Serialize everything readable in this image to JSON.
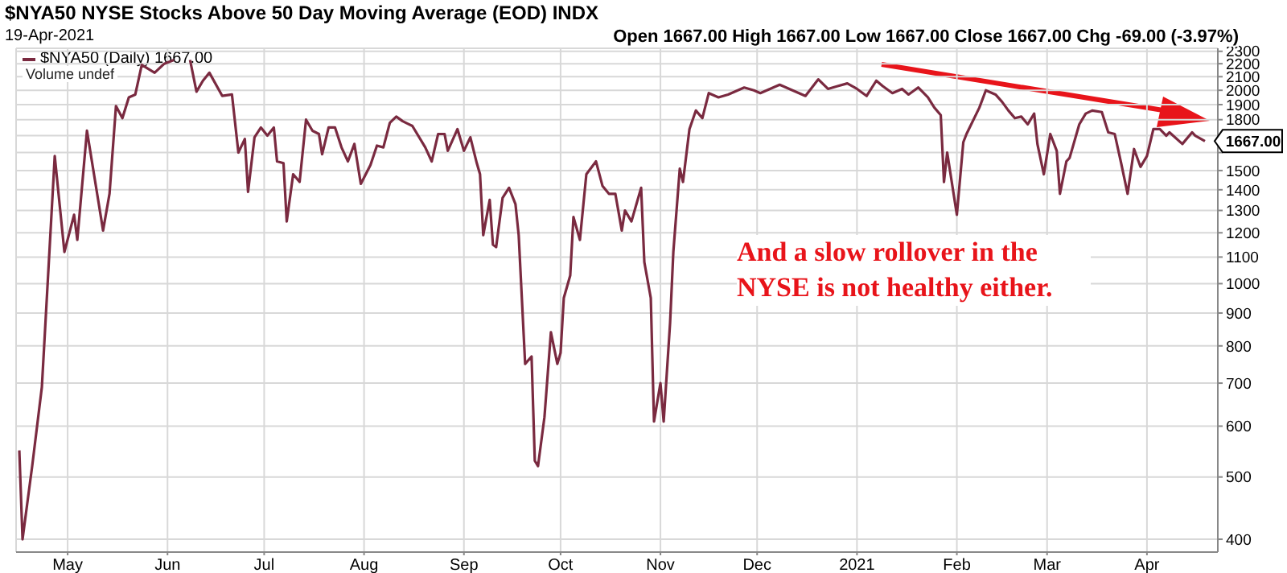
{
  "chart_data": {
    "type": "line",
    "title": "$NYA50 NYSE Stocks Above 50 Day Moving Average (EOD) INDX",
    "subtitle": "19-Apr-2021",
    "annotations": [
      "Open 1667.00 High 1667.00 Low 1667.00 Close 1667.00 Chg -69.00 (-3.97%)",
      "Volume undef",
      "And a slow rollover in the NYSE is not healthy either.",
      {
        "text": "1667.00",
        "x": "2021-04-19",
        "y": 1667
      }
    ],
    "x": [
      "2020-04-16",
      "2020-04-17",
      "2020-04-20",
      "2020-04-23",
      "2020-04-27",
      "2020-04-30",
      "2020-05-03",
      "2020-05-04",
      "2020-05-07",
      "2020-05-12",
      "2020-05-14",
      "2020-05-16",
      "2020-05-18",
      "2020-05-20",
      "2020-05-22",
      "2020-05-24",
      "2020-05-28",
      "2020-05-31",
      "2020-06-03",
      "2020-06-05",
      "2020-06-08",
      "2020-06-10",
      "2020-06-12",
      "2020-06-14",
      "2020-06-18",
      "2020-06-21",
      "2020-06-23",
      "2020-06-25",
      "2020-06-26",
      "2020-06-28",
      "2020-06-30",
      "2020-07-02",
      "2020-07-04",
      "2020-07-05",
      "2020-07-07",
      "2020-07-08",
      "2020-07-10",
      "2020-07-12",
      "2020-07-14",
      "2020-07-16",
      "2020-07-18",
      "2020-07-19",
      "2020-07-21",
      "2020-07-23",
      "2020-07-25",
      "2020-07-27",
      "2020-07-29",
      "2020-07-31",
      "2020-08-03",
      "2020-08-05",
      "2020-08-07",
      "2020-08-09",
      "2020-08-11",
      "2020-08-13",
      "2020-08-16",
      "2020-08-20",
      "2020-08-22",
      "2020-08-24",
      "2020-08-26",
      "2020-08-27",
      "2020-08-30",
      "2020-09-01",
      "2020-09-03",
      "2020-09-05",
      "2020-09-06",
      "2020-09-07",
      "2020-09-09",
      "2020-09-10",
      "2020-09-11",
      "2020-09-13",
      "2020-09-15",
      "2020-09-17",
      "2020-09-18",
      "2020-09-20",
      "2020-09-22",
      "2020-09-23",
      "2020-09-24",
      "2020-09-26",
      "2020-09-28",
      "2020-09-30",
      "2020-10-01",
      "2020-10-02",
      "2020-10-04",
      "2020-10-05",
      "2020-10-07",
      "2020-10-09",
      "2020-10-12",
      "2020-10-14",
      "2020-10-16",
      "2020-10-18",
      "2020-10-20",
      "2020-10-21",
      "2020-10-23",
      "2020-10-26",
      "2020-10-27",
      "2020-10-29",
      "2020-10-30",
      "2020-11-01",
      "2020-11-02",
      "2020-11-04",
      "2020-11-05",
      "2020-11-07",
      "2020-11-08",
      "2020-11-10",
      "2020-11-12",
      "2020-11-14",
      "2020-11-16",
      "2020-11-19",
      "2020-11-22",
      "2020-11-27",
      "2020-11-30",
      "2020-12-02",
      "2020-12-05",
      "2020-12-08",
      "2020-12-11",
      "2020-12-16",
      "2020-12-20",
      "2020-12-23",
      "2020-12-26",
      "2020-12-29",
      "2021-01-01",
      "2021-01-04",
      "2021-01-07",
      "2021-01-09",
      "2021-01-12",
      "2021-01-15",
      "2021-01-17",
      "2021-01-20",
      "2021-01-23",
      "2021-01-25",
      "2021-01-27",
      "2021-01-28",
      "2021-01-29",
      "2021-02-01",
      "2021-02-03",
      "2021-02-04",
      "2021-02-08",
      "2021-02-10",
      "2021-02-13",
      "2021-02-15",
      "2021-02-17",
      "2021-02-19",
      "2021-02-21",
      "2021-02-23",
      "2021-02-25",
      "2021-02-26",
      "2021-02-28",
      "2021-03-02",
      "2021-03-04",
      "2021-03-05",
      "2021-03-07",
      "2021-03-08",
      "2021-03-11",
      "2021-03-13",
      "2021-03-15",
      "2021-03-18",
      "2021-03-20",
      "2021-03-22",
      "2021-03-24",
      "2021-03-26",
      "2021-03-28",
      "2021-03-30",
      "2021-04-01",
      "2021-04-03",
      "2021-04-05",
      "2021-04-07",
      "2021-04-08",
      "2021-04-12",
      "2021-04-15",
      "2021-04-16",
      "2021-04-19"
    ],
    "series": [
      {
        "name": "$NYA50 (Daily) 1667.00",
        "color": "#7a2a40",
        "values": [
          550,
          400,
          520,
          690,
          1580,
          1120,
          1280,
          1170,
          1730,
          1210,
          1380,
          1890,
          1810,
          1950,
          1970,
          2190,
          2130,
          2200,
          2230,
          null,
          2230,
          1990,
          2070,
          2130,
          1960,
          1970,
          1600,
          1680,
          1390,
          1690,
          1750,
          1700,
          1750,
          1550,
          1540,
          1250,
          1480,
          1440,
          1800,
          1730,
          1710,
          1590,
          1750,
          1750,
          1630,
          1550,
          1650,
          1430,
          1530,
          1640,
          1630,
          1780,
          1820,
          1790,
          1760,
          1630,
          1550,
          1710,
          1710,
          1610,
          1740,
          1610,
          1690,
          1540,
          1480,
          1190,
          1350,
          1150,
          1140,
          1360,
          1410,
          1330,
          1190,
          750,
          770,
          530,
          520,
          620,
          840,
          750,
          780,
          950,
          1030,
          1270,
          1170,
          1480,
          1550,
          1420,
          1380,
          1380,
          1210,
          1300,
          1250,
          1410,
          1080,
          950,
          610,
          700,
          610,
          870,
          1120,
          1510,
          1440,
          1740,
          1860,
          1810,
          1980,
          1950,
          1970,
          2020,
          2000,
          1980,
          2010,
          2040,
          2010,
          1960,
          2080,
          2010,
          2030,
          2050,
          2010,
          1960,
          2070,
          2030,
          1980,
          2010,
          1970,
          2020,
          1950,
          1880,
          1830,
          1440,
          1600,
          1280,
          1660,
          1710,
          1880,
          2000,
          1970,
          1920,
          1860,
          1810,
          1820,
          1770,
          1840,
          1650,
          1480,
          1710,
          1610,
          1380,
          1550,
          1570,
          1770,
          1840,
          1860,
          1850,
          1720,
          1710,
          1540,
          1380,
          1620,
          1520,
          1580,
          1740,
          1740,
          1700,
          1720,
          1650,
          1720,
          1700,
          1667
        ]
      }
    ],
    "xlim": [
      "2020-04-15",
      "2021-04-23"
    ],
    "xticks": [
      {
        "value": "2020-05-01",
        "label": "May"
      },
      {
        "value": "2020-06-01",
        "label": "Jun"
      },
      {
        "value": "2020-07-01",
        "label": "Jul"
      },
      {
        "value": "2020-08-01",
        "label": "Aug"
      },
      {
        "value": "2020-09-01",
        "label": "Sep"
      },
      {
        "value": "2020-10-01",
        "label": "Oct"
      },
      {
        "value": "2020-11-01",
        "label": "Nov"
      },
      {
        "value": "2020-12-01",
        "label": "Dec"
      },
      {
        "value": "2021-01-01",
        "label": "2021"
      },
      {
        "value": "2021-02-01",
        "label": "Feb"
      },
      {
        "value": "2021-03-01",
        "label": "Mar"
      },
      {
        "value": "2021-04-01",
        "label": "Apr"
      }
    ],
    "ylim": [
      382,
      2325
    ],
    "yticks": [
      400,
      500,
      600,
      700,
      800,
      900,
      1000,
      1100,
      1200,
      1300,
      1400,
      1500,
      {
        "value": 1600,
        "label": null
      },
      {
        "value": 1700,
        "label": null
      },
      1800,
      1900,
      2000,
      2100,
      2200,
      2300
    ],
    "log": "y",
    "grid": true,
    "legend": "top left",
    "marker": "none",
    "line_style": "solid"
  }
}
